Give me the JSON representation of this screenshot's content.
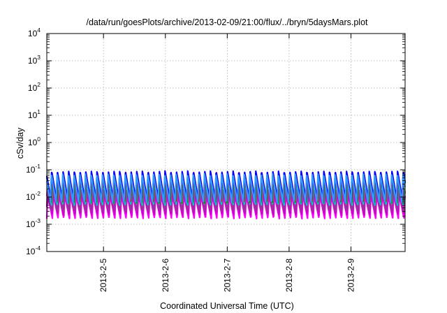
{
  "chart_data": {
    "type": "line",
    "title": "/data/run/goesPlots/archive/2013-02-09/21:00/flux/../bryn/5daysMars.plot",
    "xlabel": "Coordinated Universal Time (UTC)",
    "ylabel": "cSv/day",
    "yscale": "log",
    "ylim": [
      0.0001,
      10000
    ],
    "y_ticks": [
      {
        "base": "10",
        "exp": "-4"
      },
      {
        "base": "10",
        "exp": "-3"
      },
      {
        "base": "10",
        "exp": "-2"
      },
      {
        "base": "10",
        "exp": "-1"
      },
      {
        "base": "10",
        "exp": "0"
      },
      {
        "base": "10",
        "exp": "1"
      },
      {
        "base": "10",
        "exp": "2"
      },
      {
        "base": "10",
        "exp": "3"
      },
      {
        "base": "10",
        "exp": "4"
      }
    ],
    "xlim": [
      "2013-02-04 02:00",
      "2013-02-09 21:00"
    ],
    "x_ticks": [
      "2013-2-5",
      "2013-2-6",
      "2013-2-7",
      "2013-2-8",
      "2013-2-9"
    ],
    "grid": true,
    "oscillation_period_hours": 2.2,
    "series": [
      {
        "color": "#ff00ff",
        "min": 0.0016,
        "max": 0.012
      },
      {
        "color": "#cc00cc",
        "min": 0.0022,
        "max": 0.016
      },
      {
        "color": "#993399",
        "min": 0.003,
        "max": 0.02
      },
      {
        "color": "#00c8c8",
        "min": 0.005,
        "max": 0.05
      },
      {
        "color": "#009900",
        "min": 0.006,
        "max": 0.06
      },
      {
        "color": "#ff0000",
        "min": 0.007,
        "max": 0.08
      },
      {
        "color": "#0000ff",
        "min": 0.008,
        "max": 0.09
      },
      {
        "color": "#3399ff",
        "min": 0.006,
        "max": 0.07
      }
    ]
  }
}
